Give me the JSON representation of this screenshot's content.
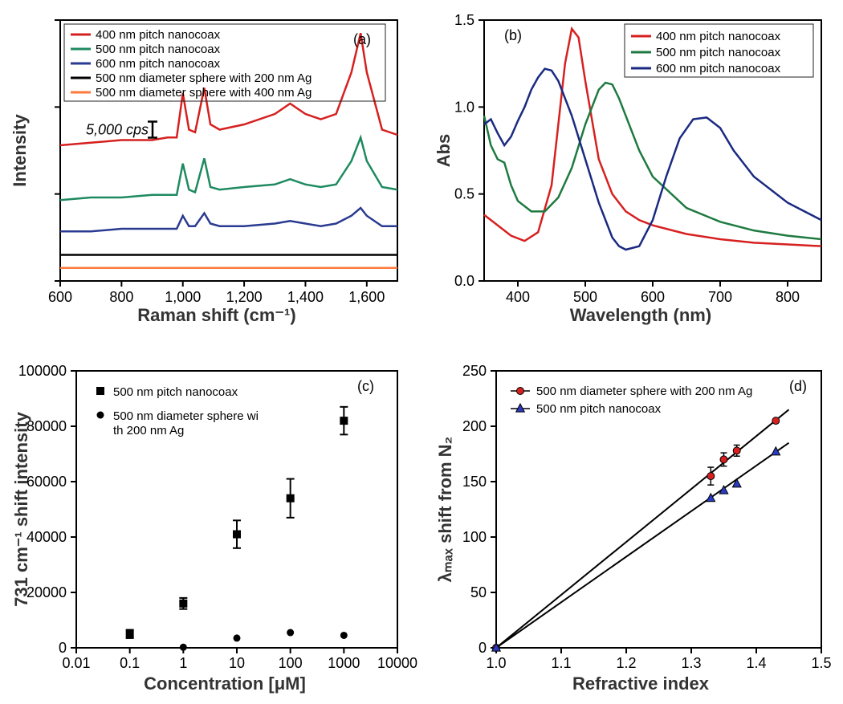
{
  "panel_a": {
    "type": "line",
    "label": "(a)",
    "xlabel": "Raman shift (cm⁻¹)",
    "ylabel": "Intensity",
    "xlim": [
      600,
      1700
    ],
    "xtick_step": 200,
    "ytick_count": 4,
    "scale_bar_label": "5,000 cps",
    "background_color": "#ffffff",
    "axis_color": "#000000",
    "grid_color": "#d0d0d0",
    "legend_box": true,
    "series": [
      {
        "label": "400 nm pitch nanocoax",
        "color": "#d62020",
        "offset": 0.5,
        "x": [
          600,
          700,
          800,
          900,
          950,
          980,
          1000,
          1020,
          1040,
          1070,
          1090,
          1120,
          1200,
          1300,
          1350,
          1400,
          1450,
          1500,
          1550,
          1580,
          1600,
          1650,
          1700
        ],
        "y": [
          0.52,
          0.53,
          0.54,
          0.54,
          0.55,
          0.55,
          0.72,
          0.58,
          0.57,
          0.74,
          0.6,
          0.58,
          0.6,
          0.64,
          0.68,
          0.64,
          0.62,
          0.64,
          0.8,
          0.95,
          0.8,
          0.58,
          0.56
        ]
      },
      {
        "label": "500 nm pitch nanocoax",
        "color": "#1e8a60",
        "offset": 0.3,
        "x": [
          600,
          700,
          800,
          900,
          950,
          980,
          1000,
          1020,
          1040,
          1070,
          1090,
          1120,
          1200,
          1300,
          1350,
          1400,
          1450,
          1500,
          1550,
          1580,
          1600,
          1650,
          1700
        ],
        "y": [
          0.31,
          0.32,
          0.32,
          0.33,
          0.33,
          0.33,
          0.45,
          0.35,
          0.34,
          0.47,
          0.36,
          0.35,
          0.36,
          0.37,
          0.39,
          0.37,
          0.36,
          0.37,
          0.46,
          0.55,
          0.46,
          0.36,
          0.35
        ]
      },
      {
        "label": "600 nm pitch nanocoax",
        "color": "#2a3a90",
        "offset": 0.18,
        "x": [
          600,
          700,
          800,
          900,
          950,
          980,
          1000,
          1020,
          1040,
          1070,
          1090,
          1120,
          1200,
          1300,
          1350,
          1400,
          1450,
          1500,
          1550,
          1580,
          1600,
          1650,
          1700
        ],
        "y": [
          0.19,
          0.19,
          0.2,
          0.2,
          0.2,
          0.2,
          0.25,
          0.21,
          0.21,
          0.26,
          0.22,
          0.21,
          0.21,
          0.22,
          0.23,
          0.22,
          0.21,
          0.22,
          0.25,
          0.28,
          0.25,
          0.21,
          0.21
        ]
      },
      {
        "label": "500 nm diameter sphere with 200 nm Ag",
        "color": "#000000",
        "offset": 0.1,
        "x": [
          600,
          1700
        ],
        "y": [
          0.1,
          0.1
        ]
      },
      {
        "label": "500 nm diameter sphere with 400 nm Ag",
        "color": "#ff7a3c",
        "offset": 0.05,
        "x": [
          600,
          1700
        ],
        "y": [
          0.05,
          0.05
        ]
      }
    ],
    "title_fontsize": 22,
    "tick_fontsize": 18,
    "legend_fontsize": 15,
    "line_width": 2.5
  },
  "panel_b": {
    "type": "line",
    "label": "(b)",
    "xlabel": "Wavelength (nm)",
    "ylabel": "Abs",
    "xlim": [
      350,
      850
    ],
    "ylim": [
      0.0,
      1.5
    ],
    "xtick_step": 100,
    "ytick_step": 0.5,
    "background_color": "#ffffff",
    "axis_color": "#000000",
    "legend_box": true,
    "series": [
      {
        "label": "400 nm pitch nanocoax",
        "color": "#d62020",
        "x": [
          350,
          370,
          390,
          410,
          430,
          450,
          460,
          470,
          480,
          490,
          500,
          520,
          540,
          560,
          580,
          600,
          650,
          700,
          750,
          800,
          850
        ],
        "y": [
          0.38,
          0.32,
          0.26,
          0.23,
          0.28,
          0.55,
          0.9,
          1.25,
          1.45,
          1.4,
          1.15,
          0.7,
          0.5,
          0.4,
          0.35,
          0.32,
          0.27,
          0.24,
          0.22,
          0.21,
          0.2
        ]
      },
      {
        "label": "500 nm pitch nanocoax",
        "color": "#1e7a40",
        "x": [
          350,
          360,
          370,
          380,
          390,
          400,
          420,
          440,
          460,
          480,
          500,
          520,
          530,
          540,
          550,
          560,
          580,
          600,
          650,
          700,
          750,
          800,
          850
        ],
        "y": [
          0.95,
          0.78,
          0.7,
          0.68,
          0.55,
          0.46,
          0.4,
          0.4,
          0.48,
          0.65,
          0.9,
          1.1,
          1.14,
          1.13,
          1.05,
          0.95,
          0.75,
          0.6,
          0.42,
          0.34,
          0.29,
          0.26,
          0.24
        ]
      },
      {
        "label": "600 nm pitch nanocoax",
        "color": "#1a2a80",
        "x": [
          350,
          360,
          370,
          380,
          390,
          400,
          410,
          420,
          430,
          440,
          450,
          460,
          480,
          500,
          520,
          540,
          550,
          560,
          580,
          600,
          620,
          640,
          660,
          680,
          700,
          720,
          750,
          800,
          850
        ],
        "y": [
          0.9,
          0.93,
          0.85,
          0.78,
          0.83,
          0.92,
          1.0,
          1.1,
          1.17,
          1.22,
          1.21,
          1.15,
          0.95,
          0.7,
          0.45,
          0.25,
          0.2,
          0.18,
          0.2,
          0.35,
          0.6,
          0.82,
          0.93,
          0.94,
          0.88,
          0.75,
          0.6,
          0.45,
          0.35
        ]
      }
    ],
    "title_fontsize": 22,
    "tick_fontsize": 18,
    "legend_fontsize": 15,
    "line_width": 2.5
  },
  "panel_c": {
    "type": "scatter",
    "label": "(c)",
    "xlabel": "Concentration [μM]",
    "ylabel": "731 cm⁻¹ shift intensity",
    "xscale": "log",
    "xlim": [
      0.01,
      10000
    ],
    "ylim": [
      0,
      100000
    ],
    "xticks": [
      0.01,
      0.1,
      1,
      10,
      100,
      1000,
      10000
    ],
    "ytick_step": 20000,
    "background_color": "#ffffff",
    "axis_color": "#000000",
    "legend_box": false,
    "series": [
      {
        "label": "500 nm pitch nanocoax",
        "marker": "square",
        "color": "#000000",
        "size": 10,
        "x": [
          0.1,
          1,
          10,
          100,
          1000
        ],
        "y": [
          5000,
          16000,
          41000,
          54000,
          82000
        ],
        "err": [
          1500,
          2000,
          5000,
          7000,
          5000
        ]
      },
      {
        "label": "500 nm diameter sphere with 200 nm Ag",
        "marker": "circle",
        "color": "#000000",
        "size": 9,
        "x": [
          1,
          10,
          100,
          1000
        ],
        "y": [
          200,
          3500,
          5500,
          4500
        ],
        "err": [
          0,
          0,
          0,
          0
        ]
      }
    ],
    "title_fontsize": 22,
    "tick_fontsize": 18,
    "legend_fontsize": 16
  },
  "panel_d": {
    "type": "scatter-line",
    "label": "(d)",
    "xlabel": "Refractive index",
    "ylabel": "λₘₐₓ shift from N₂",
    "xlim": [
      1.0,
      1.5
    ],
    "ylim": [
      0,
      250
    ],
    "xtick_step": 0.1,
    "ytick_step": 50,
    "background_color": "#ffffff",
    "axis_color": "#000000",
    "legend_box": false,
    "series": [
      {
        "label": "500 nm diameter sphere with 200 nm Ag",
        "marker": "circle",
        "color": "#d62020",
        "size": 9,
        "line_color": "#000000",
        "x": [
          1.0,
          1.33,
          1.35,
          1.37,
          1.43
        ],
        "y": [
          0,
          155,
          170,
          178,
          205
        ],
        "err": [
          0,
          8,
          6,
          5,
          0
        ],
        "fit": {
          "x1": 1.0,
          "y1": 0,
          "x2": 1.45,
          "y2": 215
        }
      },
      {
        "label": "500 nm pitch nanocoax",
        "marker": "triangle",
        "color": "#2a3ac0",
        "size": 9,
        "line_color": "#000000",
        "x": [
          1.0,
          1.33,
          1.35,
          1.37,
          1.43
        ],
        "y": [
          0,
          135,
          142,
          148,
          177
        ],
        "err": [
          0,
          0,
          0,
          0,
          0
        ],
        "fit": {
          "x1": 1.0,
          "y1": 0,
          "x2": 1.45,
          "y2": 185
        }
      }
    ],
    "title_fontsize": 22,
    "tick_fontsize": 18,
    "legend_fontsize": 15,
    "line_width": 2
  }
}
